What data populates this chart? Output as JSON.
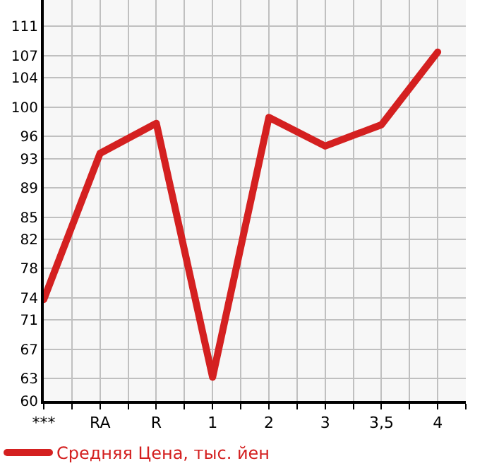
{
  "chart_data": {
    "type": "line",
    "categories": [
      "***",
      "RA",
      "R",
      "1",
      "2",
      "3",
      "3,5",
      "4"
    ],
    "series": [
      {
        "name": "Средняя Цена, тыс. йен",
        "color": "#d42020",
        "values": [
          73.8,
          93.7,
          97.8,
          63.2,
          98.6,
          94.7,
          97.6,
          107.5
        ]
      }
    ],
    "ylim": [
      60,
      114.6
    ],
    "yticks": [
      60,
      63,
      67,
      71,
      74,
      78,
      82,
      85,
      89,
      93,
      96,
      100,
      104,
      107,
      111
    ],
    "grid": true,
    "legend": "bottom left",
    "marker": "none",
    "line_style": "solid"
  }
}
